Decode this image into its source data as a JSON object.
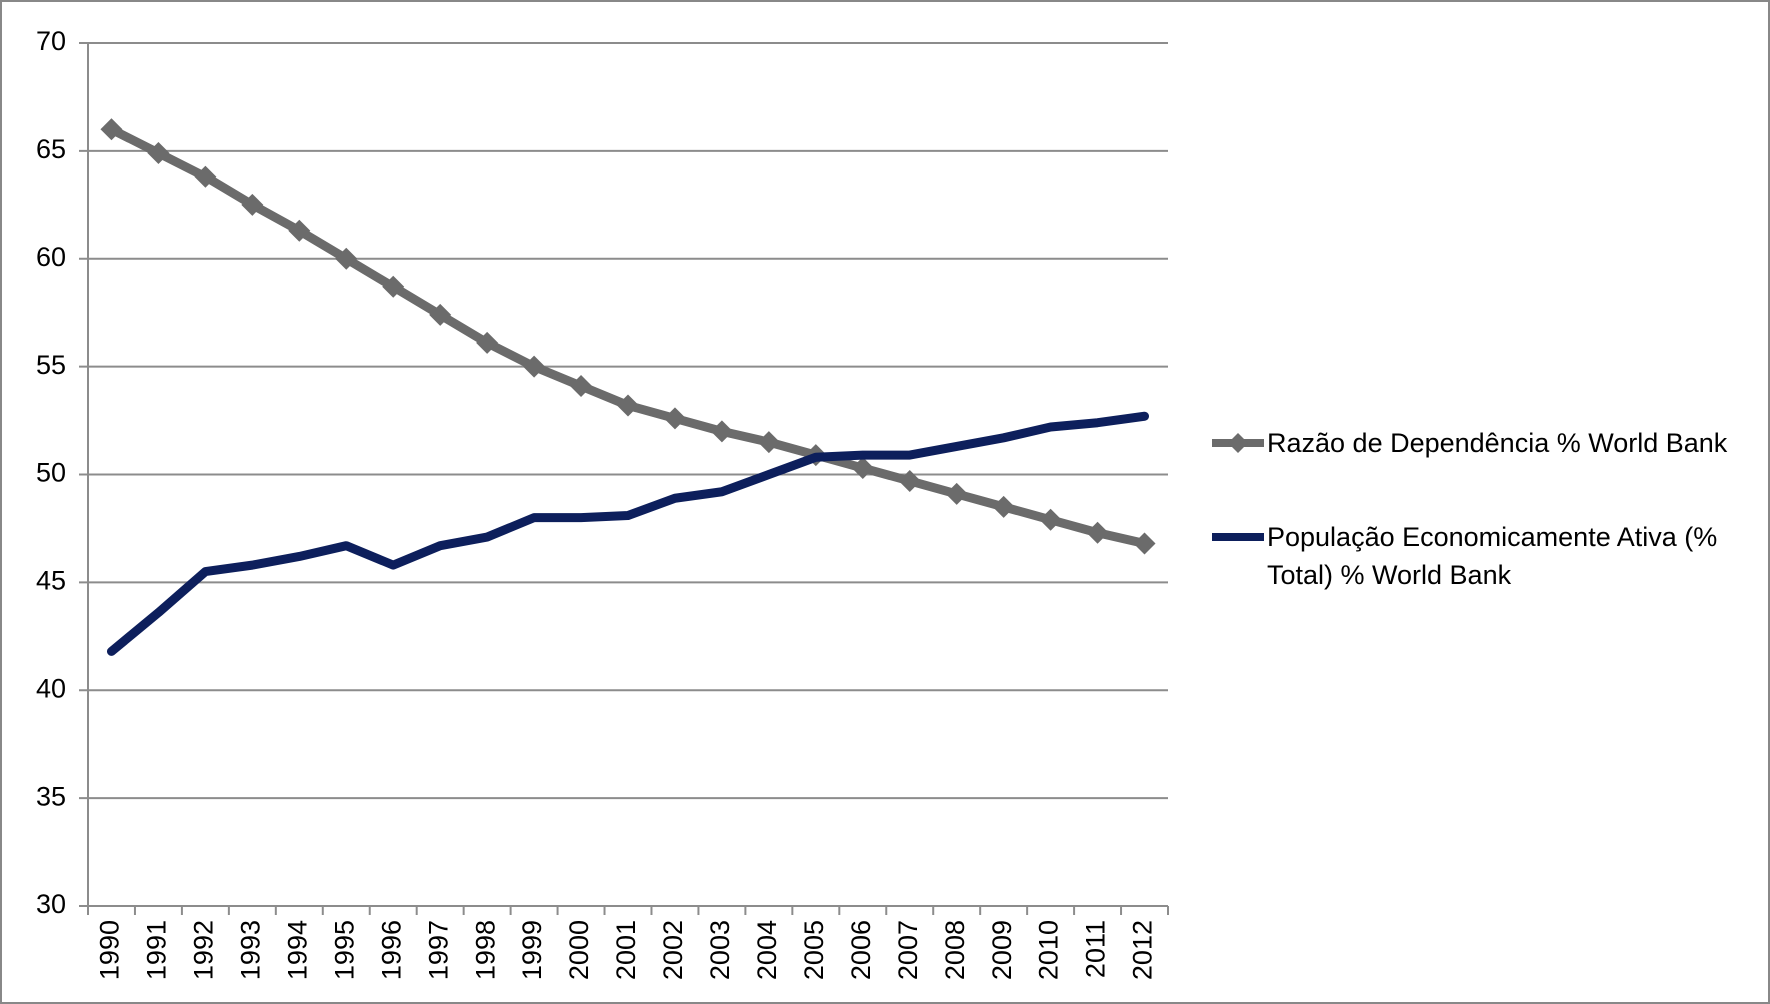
{
  "chart_data": {
    "type": "line",
    "categories": [
      "1990",
      "1991",
      "1992",
      "1993",
      "1994",
      "1995",
      "1996",
      "1997",
      "1998",
      "1999",
      "2000",
      "2001",
      "2002",
      "2003",
      "2004",
      "2005",
      "2006",
      "2007",
      "2008",
      "2009",
      "2010",
      "2011",
      "2012"
    ],
    "series": [
      {
        "name": "Razão de Dependência % World Bank",
        "color": "#6b6b6b",
        "marker": "diamond",
        "values": [
          66.0,
          64.9,
          63.8,
          62.5,
          61.3,
          60.0,
          58.7,
          57.4,
          56.1,
          55.0,
          54.1,
          53.2,
          52.6,
          52.0,
          51.5,
          50.9,
          50.3,
          49.7,
          49.1,
          48.5,
          47.9,
          47.3,
          46.8
        ]
      },
      {
        "name": "População Economicamente Ativa (% Total) % World Bank",
        "color": "#0d1f5c",
        "values": [
          41.8,
          43.6,
          45.5,
          45.8,
          46.2,
          46.7,
          45.8,
          46.7,
          47.1,
          48.0,
          48.0,
          48.1,
          48.9,
          49.2,
          50.0,
          50.8,
          50.9,
          50.9,
          51.3,
          51.7,
          52.2,
          52.4,
          52.7
        ]
      }
    ],
    "ylim": [
      30,
      70
    ],
    "yticks": [
      30,
      35,
      40,
      45,
      50,
      55,
      60,
      65,
      70
    ],
    "grid": true,
    "legend": "right"
  }
}
